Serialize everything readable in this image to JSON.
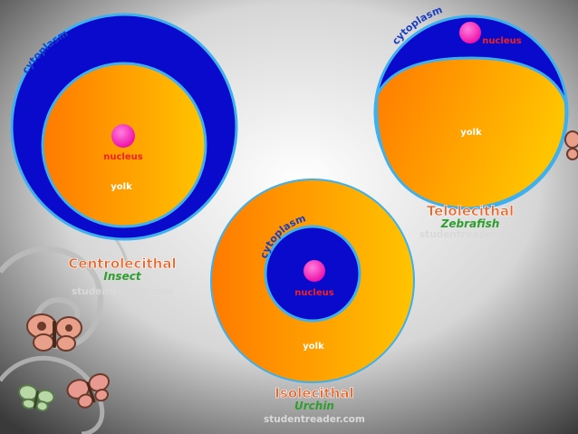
{
  "colors": {
    "cytoplasm": "#0a0acc",
    "cytoplasm_rim": "#3fb0ee",
    "yolk_start": "#ff7a00",
    "yolk_end": "#ffc400",
    "nucleus": "#ff1fb0",
    "nucleus_label": "#ee2222",
    "title": "#e8662a",
    "species": "#2e9e2e",
    "credit": "#d9d9d9",
    "cytoplasm_label": "#1a3fc4"
  },
  "decorations": [
    "butterfly-icon",
    "butterfly-icon",
    "butterfly-icon",
    "swirl-vine"
  ],
  "eggs": {
    "centrolecithal": {
      "title": "Centrolecithal",
      "species": "Insect",
      "credit": "studentreader.com",
      "cytoplasm_label": "cytoplasm",
      "nucleus_label": "nucleus",
      "yolk_label": "yolk"
    },
    "telolecithal": {
      "title": "Telolecithal",
      "species": "Zebrafish",
      "credit": "studentreader.com",
      "cytoplasm_label": "cytoplasm",
      "nucleus_label": "nucleus",
      "yolk_label": "yolk"
    },
    "isolecithal": {
      "title": "Isolecithal",
      "species": "Urchin",
      "credit": "studentreader.com",
      "cytoplasm_label": "cytoplasm",
      "nucleus_label": "nucleus",
      "yolk_label": "yolk"
    }
  }
}
